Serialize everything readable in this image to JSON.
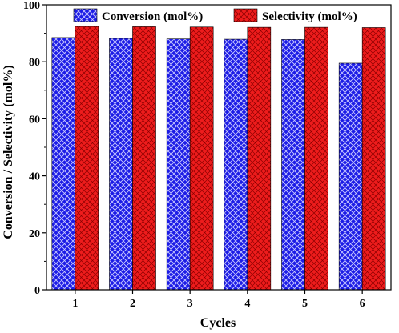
{
  "chart_data": {
    "type": "bar",
    "title": "",
    "xlabel": "Cycles",
    "ylabel": "Conversion / Selectivity (mol%)",
    "categories": [
      "1",
      "2",
      "3",
      "4",
      "5",
      "6"
    ],
    "series": [
      {
        "name": "Conversion (mol%)",
        "values": [
          88.5,
          88.2,
          88.0,
          87.9,
          87.8,
          79.5
        ],
        "color": "#1c1ce6",
        "pattern": "crosshatch-white"
      },
      {
        "name": "Selectivity (mol%)",
        "values": [
          92.4,
          92.3,
          92.2,
          92.1,
          92.1,
          92.0
        ],
        "color": "#ee1c1c",
        "pattern": "crosshatch-dark"
      }
    ],
    "ylim": [
      0,
      100
    ],
    "yticks": [
      "0",
      "20",
      "40",
      "60",
      "80",
      "100"
    ],
    "grid": false,
    "legend_position": "top"
  }
}
